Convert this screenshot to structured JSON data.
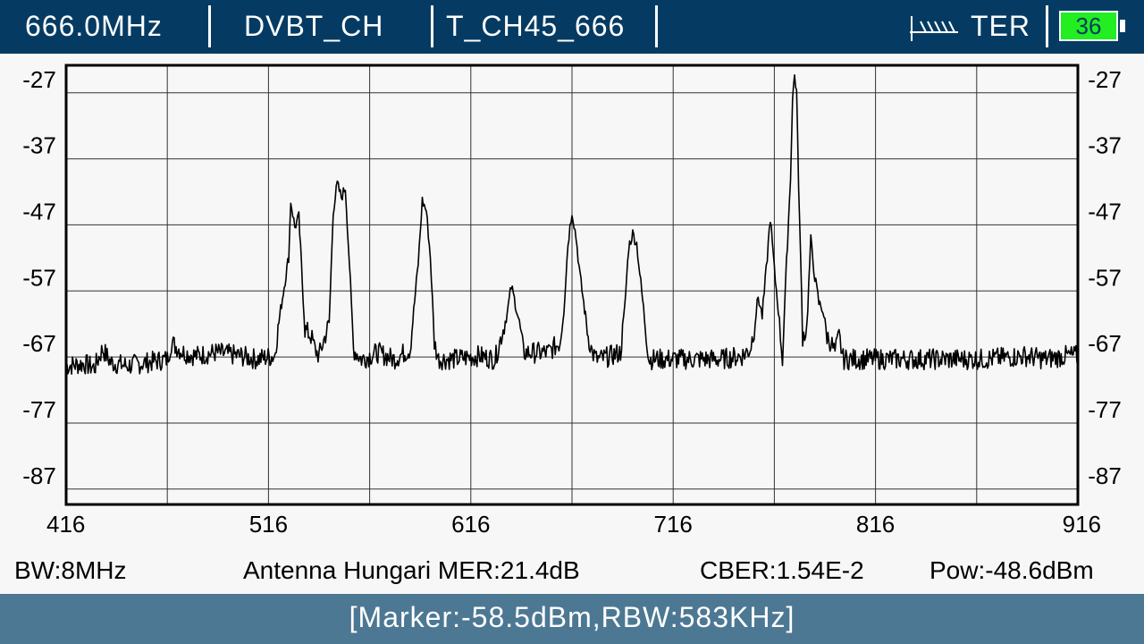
{
  "header": {
    "frequency": "666.0MHz",
    "mode": "DVBT_CH",
    "channel": "T_CH45_666",
    "antenna_icon": "antenna-icon",
    "band": "TER",
    "battery_level": "36",
    "battery_color": "#22ee22"
  },
  "chart_data": {
    "type": "line",
    "title": "",
    "xlabel": "",
    "ylabel": "",
    "xlim": [
      416,
      916
    ],
    "ylim": [
      -91.5,
      -25
    ],
    "x_ticks": [
      416,
      516,
      616,
      716,
      816,
      916
    ],
    "y_ticks": [
      -27,
      -37,
      -47,
      -57,
      -67,
      -77,
      -87
    ],
    "grid": true,
    "line_color": "#000000",
    "series": [
      {
        "x": [
          416,
          425,
          430,
          434,
          438,
          446,
          466,
          468,
          474,
          480,
          490,
          502,
          510,
          519,
          522,
          526,
          527,
          529,
          531,
          534,
          537,
          539,
          541,
          546,
          548,
          550,
          552,
          554,
          556,
          558,
          562,
          566,
          570,
          578,
          586,
          590,
          592,
          594,
          596,
          598,
          600,
          608,
          620,
          628,
          632,
          634,
          636,
          638,
          640,
          642,
          654,
          660,
          662,
          664,
          666,
          668,
          670,
          674,
          676,
          678,
          680,
          690,
          692,
          694,
          696,
          698,
          700,
          704,
          716,
          724,
          740,
          750,
          754,
          756,
          758,
          760,
          762,
          764,
          766,
          768,
          770,
          772,
          774,
          775,
          776,
          777,
          778,
          780,
          782,
          784,
          786,
          788,
          790,
          792,
          794,
          796,
          798,
          800,
          810,
          830,
          850,
          870,
          890,
          900,
          910,
          916
        ],
        "y": [
          -70.5,
          -70.2,
          -70.8,
          -68,
          -70,
          -70.5,
          -69.5,
          -67,
          -68.5,
          -69,
          -68.5,
          -69,
          -69.5,
          -69,
          -62,
          -54,
          -45.5,
          -49.5,
          -48,
          -65,
          -66,
          -68,
          -69,
          -64,
          -47,
          -43,
          -45,
          -43.5,
          -55,
          -68,
          -69.5,
          -69,
          -68.5,
          -69.5,
          -68,
          -55,
          -45.5,
          -47,
          -54,
          -67,
          -69.5,
          -69.5,
          -69,
          -69.5,
          -65,
          -62.5,
          -58.5,
          -61,
          -64,
          -68.5,
          -68.5,
          -67,
          -62,
          -52,
          -47,
          -51,
          -57,
          -66,
          -68.5,
          -69.5,
          -69.5,
          -68.5,
          -62,
          -52.5,
          -50.5,
          -52,
          -58,
          -69.5,
          -69.5,
          -69.5,
          -69.5,
          -69,
          -68,
          -65,
          -60,
          -63,
          -56,
          -48,
          -56,
          -62,
          -69.5,
          -55,
          -42,
          -30,
          -26.5,
          -29,
          -43,
          -66,
          -65,
          -51.5,
          -57,
          -61,
          -62,
          -66,
          -67,
          -68.5,
          -66,
          -69.5,
          -69.5,
          -69.5,
          -69.5,
          -69.5,
          -69,
          -69.5,
          -69,
          -69
        ]
      }
    ]
  },
  "status": {
    "bw": "BW:8MHz",
    "mer": "Antenna Hungari MER:21.4dB",
    "cber": "CBER:1.54E-2",
    "pow": "Pow:-48.6dBm"
  },
  "footer": {
    "marker": "[Marker:-58.5dBm,RBW:583KHz]"
  }
}
